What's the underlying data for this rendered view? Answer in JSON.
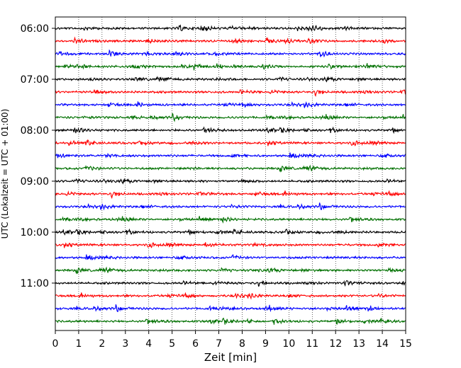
{
  "chart_data": {
    "type": "line",
    "title": "",
    "xlabel": "Zeit  [min]",
    "ylabel": "UTC (Lokalzeit = UTC + 01:00)",
    "xlim": [
      0,
      15
    ],
    "x_ticks": [
      0,
      1,
      2,
      3,
      4,
      5,
      6,
      7,
      8,
      9,
      10,
      11,
      12,
      13,
      14,
      15
    ],
    "y_tick_labels": [
      "06:00",
      "07:00",
      "08:00",
      "09:00",
      "10:00",
      "11:00"
    ],
    "row_interval_minutes": 15,
    "start_time": "06:00",
    "row_count": 24,
    "row_colors": [
      "#000000",
      "#ff0000",
      "#0000ff",
      "#007000"
    ],
    "grid": "vertical dotted lines at each minute"
  }
}
